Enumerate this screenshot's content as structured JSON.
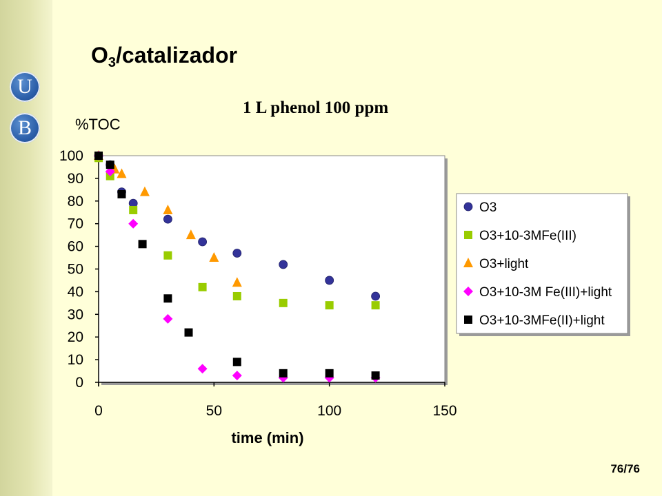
{
  "slide": {
    "title_main": "O",
    "title_sub": "3",
    "title_rest": "/catalizador",
    "page_number": "76/76",
    "logo_letters": [
      "U",
      "B"
    ]
  },
  "chart_data": {
    "type": "scatter",
    "title": "1 L phenol 100 ppm",
    "xlabel": "time (min)",
    "ylabel": "%TOC",
    "xlim": [
      0,
      150
    ],
    "ylim": [
      0,
      100
    ],
    "xticks": [
      0,
      50,
      100,
      150
    ],
    "yticks": [
      0,
      10,
      20,
      30,
      40,
      50,
      60,
      70,
      80,
      90,
      100
    ],
    "grid": false,
    "legend_position": "right",
    "series": [
      {
        "name": "O3",
        "marker": "circle",
        "color": "#333399",
        "points": [
          [
            0,
            100
          ],
          [
            5,
            96
          ],
          [
            10,
            84
          ],
          [
            15,
            79
          ],
          [
            30,
            72
          ],
          [
            45,
            62
          ],
          [
            60,
            57
          ],
          [
            80,
            52
          ],
          [
            100,
            45
          ],
          [
            120,
            38
          ]
        ]
      },
      {
        "name": "O3+10-3MFe(III)",
        "marker": "square",
        "color": "#99cc00",
        "points": [
          [
            0,
            99
          ],
          [
            5,
            91
          ],
          [
            15,
            76
          ],
          [
            30,
            56
          ],
          [
            45,
            42
          ],
          [
            60,
            38
          ],
          [
            80,
            35
          ],
          [
            100,
            34
          ],
          [
            120,
            34
          ]
        ]
      },
      {
        "name": "O3+light",
        "marker": "triangle",
        "color": "#ff9900",
        "points": [
          [
            0,
            100
          ],
          [
            7,
            94
          ],
          [
            10,
            92
          ],
          [
            20,
            84
          ],
          [
            30,
            76
          ],
          [
            40,
            65
          ],
          [
            50,
            55
          ],
          [
            60,
            44
          ]
        ]
      },
      {
        "name": "O3+10-3M Fe(III)+light",
        "marker": "diamond",
        "color": "#ff00ff",
        "points": [
          [
            0,
            100
          ],
          [
            5,
            93
          ],
          [
            15,
            70
          ],
          [
            30,
            28
          ],
          [
            45,
            6
          ],
          [
            60,
            3
          ],
          [
            80,
            2
          ],
          [
            100,
            2
          ],
          [
            120,
            2
          ]
        ]
      },
      {
        "name": "O3+10-3MFe(II)+light",
        "marker": "square",
        "color": "#000000",
        "points": [
          [
            0,
            100
          ],
          [
            5,
            96
          ],
          [
            10,
            83
          ],
          [
            19,
            61
          ],
          [
            30,
            37
          ],
          [
            39,
            22
          ],
          [
            60,
            9
          ],
          [
            80,
            4
          ],
          [
            100,
            4
          ],
          [
            120,
            3
          ]
        ]
      }
    ]
  }
}
